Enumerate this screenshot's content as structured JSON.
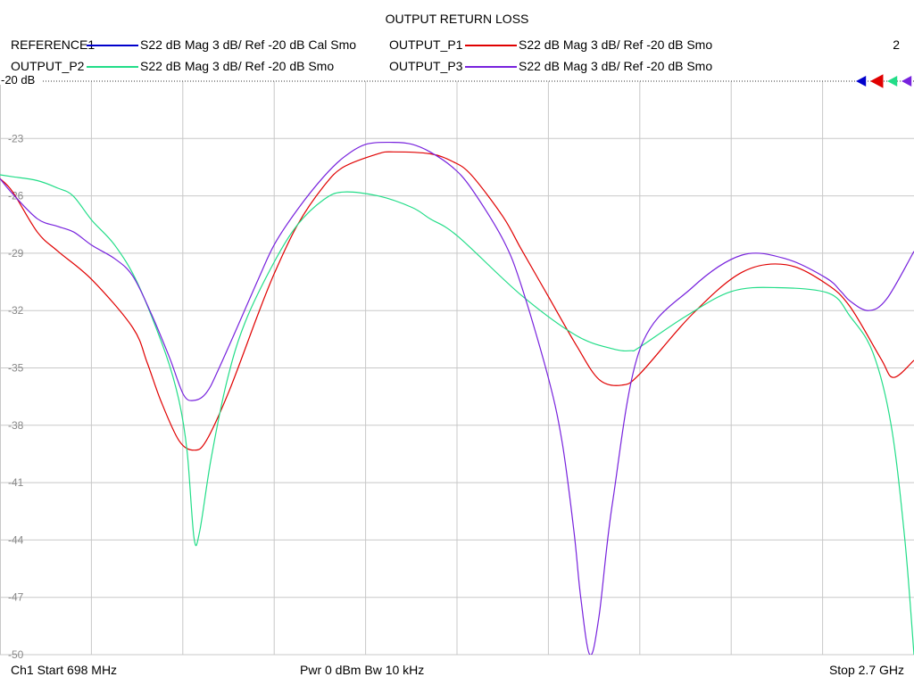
{
  "chart_data": {
    "type": "line",
    "title": "OUTPUT RETURN LOSS",
    "reference_label": "-20 dB",
    "y_ticks": [
      -20,
      -23,
      -26,
      -29,
      -32,
      -35,
      -38,
      -41,
      -44,
      -47,
      -50
    ],
    "ylim": [
      -20,
      -50
    ],
    "xlim": [
      698,
      2700
    ],
    "x_unit": "MHz",
    "grid": true,
    "channel_number": "2",
    "legend": [
      {
        "name": "REFERENCE1",
        "desc": "S22  dB Mag  3 dB/ Ref -20 dB  Cal Smo",
        "color": "#0000cc"
      },
      {
        "name": "OUTPUT_P1",
        "desc": "S22  dB Mag  3 dB/ Ref -20 dB  Smo",
        "color": "#e00000"
      },
      {
        "name": "OUTPUT_P2",
        "desc": "S22  dB Mag  3 dB/ Ref -20 dB  Smo",
        "color": "#22dd88"
      },
      {
        "name": "OUTPUT_P3",
        "desc": "S22  dB Mag  3 dB/ Ref -20 dB  Smo",
        "color": "#7722dd"
      }
    ],
    "markers": [
      {
        "series": "REFERENCE1",
        "color": "#0000cc"
      },
      {
        "series": "OUTPUT_P1",
        "color": "#e00000"
      },
      {
        "series": "OUTPUT_P2",
        "color": "#22dd88"
      },
      {
        "series": "OUTPUT_P3",
        "color": "#7722dd"
      }
    ],
    "series": [
      {
        "name": "OUTPUT_P1",
        "color": "#e00000",
        "x": [
          698,
          726,
          780,
          825,
          900,
          989,
          1020,
          1050,
          1090,
          1123,
          1150,
          1200,
          1263,
          1300,
          1350,
          1407,
          1450,
          1526,
          1560,
          1640,
          1689,
          1730,
          1800,
          1840,
          1900,
          1960,
          2010,
          2060,
          2100,
          2214,
          2323,
          2420,
          2508,
          2560,
          2627,
          2655,
          2700
        ],
        "y": [
          -25.1,
          -25.8,
          -27.9,
          -28.9,
          -30.4,
          -32.9,
          -34.7,
          -36.7,
          -38.8,
          -39.3,
          -38.8,
          -36.2,
          -32.2,
          -30.0,
          -27.5,
          -25.5,
          -24.5,
          -23.8,
          -23.7,
          -23.8,
          -24.2,
          -24.9,
          -27.1,
          -28.8,
          -31.3,
          -33.8,
          -35.6,
          -35.9,
          -35.3,
          -32.2,
          -30.0,
          -29.6,
          -30.6,
          -31.8,
          -34.5,
          -35.5,
          -34.6
        ]
      },
      {
        "name": "OUTPUT_P2",
        "color": "#22dd88",
        "x": [
          698,
          726,
          780,
          825,
          858,
          900,
          950,
          1000,
          1060,
          1090,
          1108,
          1123,
          1135,
          1160,
          1195,
          1235,
          1300,
          1350,
          1407,
          1450,
          1526,
          1600,
          1640,
          1700,
          1840,
          1960,
          2040,
          2080,
          2100,
          2200,
          2300,
          2400,
          2514,
          2560,
          2610,
          2650,
          2680,
          2700
        ],
        "y": [
          -24.9,
          -25.0,
          -25.2,
          -25.6,
          -26.0,
          -27.3,
          -28.6,
          -30.6,
          -34.2,
          -36.7,
          -39.4,
          -43.9,
          -43.6,
          -39.8,
          -35.7,
          -32.6,
          -29.4,
          -27.5,
          -26.2,
          -25.8,
          -26.0,
          -26.6,
          -27.2,
          -28.1,
          -31.2,
          -33.3,
          -34.0,
          -34.1,
          -33.9,
          -32.3,
          -31.0,
          -30.8,
          -31.1,
          -32.3,
          -34.2,
          -38.0,
          -44.0,
          -50.0
        ]
      },
      {
        "name": "OUTPUT_P3",
        "color": "#7722dd",
        "x": [
          698,
          726,
          780,
          825,
          860,
          900,
          950,
          989,
          1030,
          1070,
          1100,
          1123,
          1150,
          1180,
          1263,
          1300,
          1350,
          1407,
          1450,
          1500,
          1560,
          1600,
          1640,
          1689,
          1730,
          1800,
          1840,
          1900,
          1930,
          1955,
          1970,
          1990,
          2010,
          2040,
          2100,
          2214,
          2323,
          2420,
          2508,
          2540,
          2560,
          2600,
          2640,
          2700
        ],
        "y": [
          -25.1,
          -25.9,
          -27.2,
          -27.6,
          -27.9,
          -28.6,
          -29.3,
          -30.2,
          -32.2,
          -34.5,
          -36.4,
          -36.7,
          -36.3,
          -34.9,
          -30.4,
          -28.5,
          -26.7,
          -25.0,
          -24.0,
          -23.3,
          -23.2,
          -23.3,
          -23.7,
          -24.5,
          -25.6,
          -28.3,
          -30.7,
          -35.6,
          -39.0,
          -43.5,
          -47.0,
          -50.0,
          -48.0,
          -42.0,
          -34.0,
          -30.8,
          -29.1,
          -29.3,
          -30.3,
          -31.0,
          -31.5,
          -32.0,
          -31.4,
          -28.9
        ]
      }
    ]
  },
  "footer": {
    "left": "Ch1  Start  698 MHz",
    "center": "Pwr  0 dBm  Bw  10 kHz",
    "right": "Stop  2.7 GHz"
  }
}
